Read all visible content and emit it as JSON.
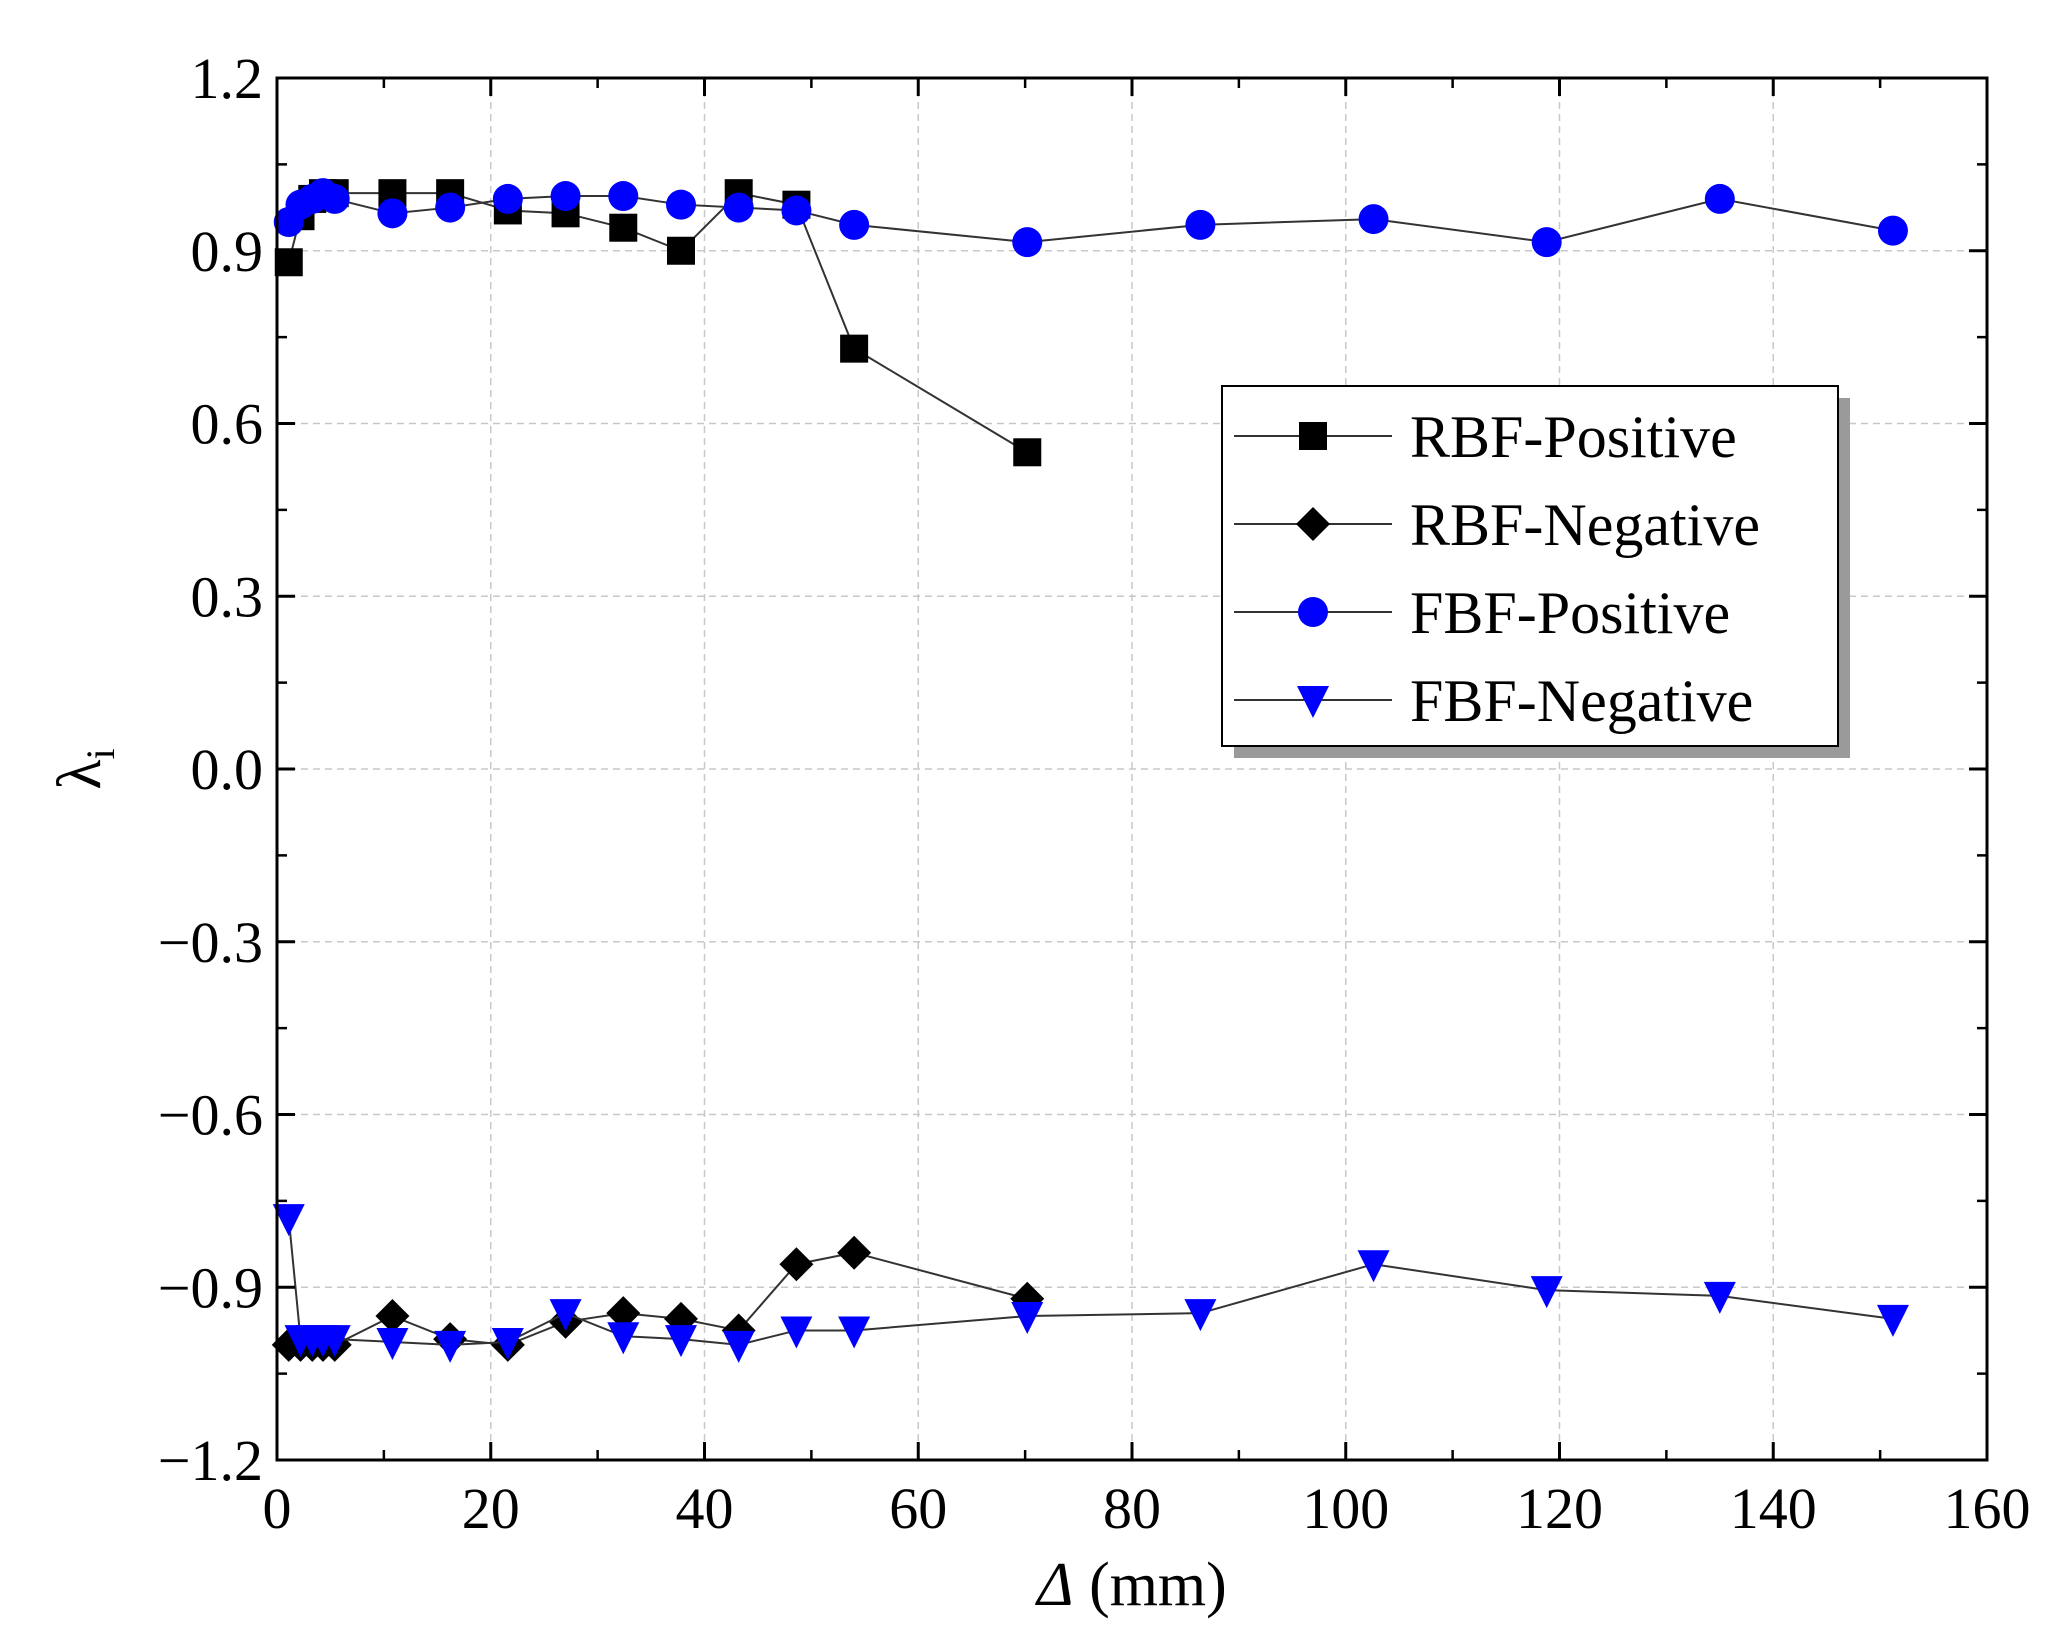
{
  "chart_data": {
    "type": "line",
    "title": "",
    "xlabel": {
      "symbol": "Δ",
      "unit": " (mm)"
    },
    "ylabel": {
      "symbol": "λ",
      "subscript": "i"
    },
    "xlim": [
      0,
      160
    ],
    "ylim": [
      -1.2,
      1.2
    ],
    "x_ticks": [
      0,
      20,
      40,
      60,
      80,
      100,
      120,
      140,
      160
    ],
    "x_tick_labels": [
      "0",
      "20",
      "40",
      "60",
      "80",
      "100",
      "120",
      "140",
      "160"
    ],
    "y_ticks": [
      -1.2,
      -0.9,
      -0.6,
      -0.3,
      0.0,
      0.3,
      0.6,
      0.9,
      1.2
    ],
    "y_tick_labels": [
      "−1.2",
      "−0.9",
      "−0.6",
      "−0.3",
      "0.0",
      "0.3",
      "0.6",
      "0.9",
      "1.2"
    ],
    "grid": true,
    "legend_position": "right-middle",
    "series": [
      {
        "name": "RBF-Positive",
        "marker": "square",
        "color": "#000000",
        "x": [
          1.1,
          2.2,
          3.3,
          4.3,
          5.4,
          10.8,
          16.2,
          21.6,
          27.0,
          32.4,
          37.8,
          43.2,
          48.6,
          54.0,
          70.2
        ],
        "y": [
          0.88,
          0.96,
          0.99,
          1.0,
          1.0,
          1.0,
          1.0,
          0.97,
          0.965,
          0.94,
          0.9,
          1.0,
          0.98,
          0.73,
          0.55
        ]
      },
      {
        "name": "RBF-Negative",
        "marker": "diamond",
        "color": "#000000",
        "x": [
          1.1,
          2.2,
          3.3,
          4.3,
          5.4,
          10.8,
          16.2,
          21.6,
          27.0,
          32.4,
          37.8,
          43.2,
          48.6,
          54.0,
          70.2
        ],
        "y": [
          -1.0,
          -1.0,
          -1.0,
          -1.0,
          -1.0,
          -0.95,
          -0.99,
          -1.0,
          -0.96,
          -0.945,
          -0.955,
          -0.975,
          -0.86,
          -0.84,
          -0.92
        ]
      },
      {
        "name": "FBF-Positive",
        "marker": "circle",
        "color": "#0000ff",
        "x": [
          1.1,
          2.2,
          3.3,
          4.3,
          5.4,
          10.8,
          16.2,
          21.6,
          27.0,
          32.4,
          37.8,
          43.2,
          48.6,
          54.0,
          70.2,
          86.4,
          102.6,
          118.8,
          135.0,
          151.2
        ],
        "y": [
          0.95,
          0.98,
          0.99,
          1.0,
          0.99,
          0.965,
          0.975,
          0.99,
          0.995,
          0.995,
          0.98,
          0.975,
          0.97,
          0.945,
          0.915,
          0.945,
          0.955,
          0.915,
          0.99,
          0.935
        ]
      },
      {
        "name": "FBF-Negative",
        "marker": "triangle-down",
        "color": "#0000ff",
        "x": [
          1.1,
          2.2,
          3.3,
          4.3,
          5.4,
          10.8,
          16.2,
          21.6,
          27.0,
          32.4,
          37.8,
          43.2,
          48.6,
          54.0,
          70.2,
          86.4,
          102.6,
          118.8,
          135.0,
          151.2
        ],
        "y": [
          -0.78,
          -0.99,
          -0.99,
          -0.99,
          -0.99,
          -0.995,
          -1.0,
          -0.995,
          -0.945,
          -0.985,
          -0.99,
          -1.0,
          -0.975,
          -0.975,
          -0.95,
          -0.945,
          -0.86,
          -0.905,
          -0.915,
          -0.955
        ]
      }
    ]
  }
}
